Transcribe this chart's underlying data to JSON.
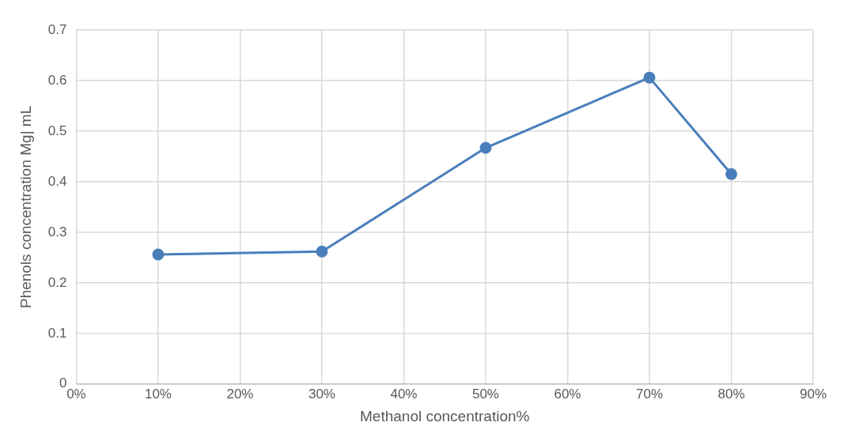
{
  "chart_data": {
    "type": "line",
    "xlabel": "Methanol concentration%",
    "ylabel": "Phenols concentration Mg| mL",
    "x": [
      10,
      30,
      50,
      70,
      80
    ],
    "series": [
      {
        "color": "#4a7ebb",
        "values": [
          0.256,
          0.262,
          0.467,
          0.606,
          0.415
        ]
      }
    ],
    "xlim": [
      0,
      90
    ],
    "xticks": [
      {
        "value": 0,
        "label": "0%"
      },
      {
        "value": 10,
        "label": "10%"
      },
      {
        "value": 20,
        "label": "20%"
      },
      {
        "value": 30,
        "label": "30%"
      },
      {
        "value": 40,
        "label": "40%"
      },
      {
        "value": 50,
        "label": "50%"
      },
      {
        "value": 60,
        "label": "60%"
      },
      {
        "value": 70,
        "label": "70%"
      },
      {
        "value": 80,
        "label": "80%"
      },
      {
        "value": 90,
        "label": "90%"
      }
    ],
    "ylim": [
      0,
      0.7
    ],
    "yticks": [
      0,
      0.1,
      0.2,
      0.3,
      0.4,
      0.5,
      0.6,
      0.7
    ],
    "grid": true,
    "legend": false,
    "marker": "circle",
    "line_style": "solid"
  }
}
